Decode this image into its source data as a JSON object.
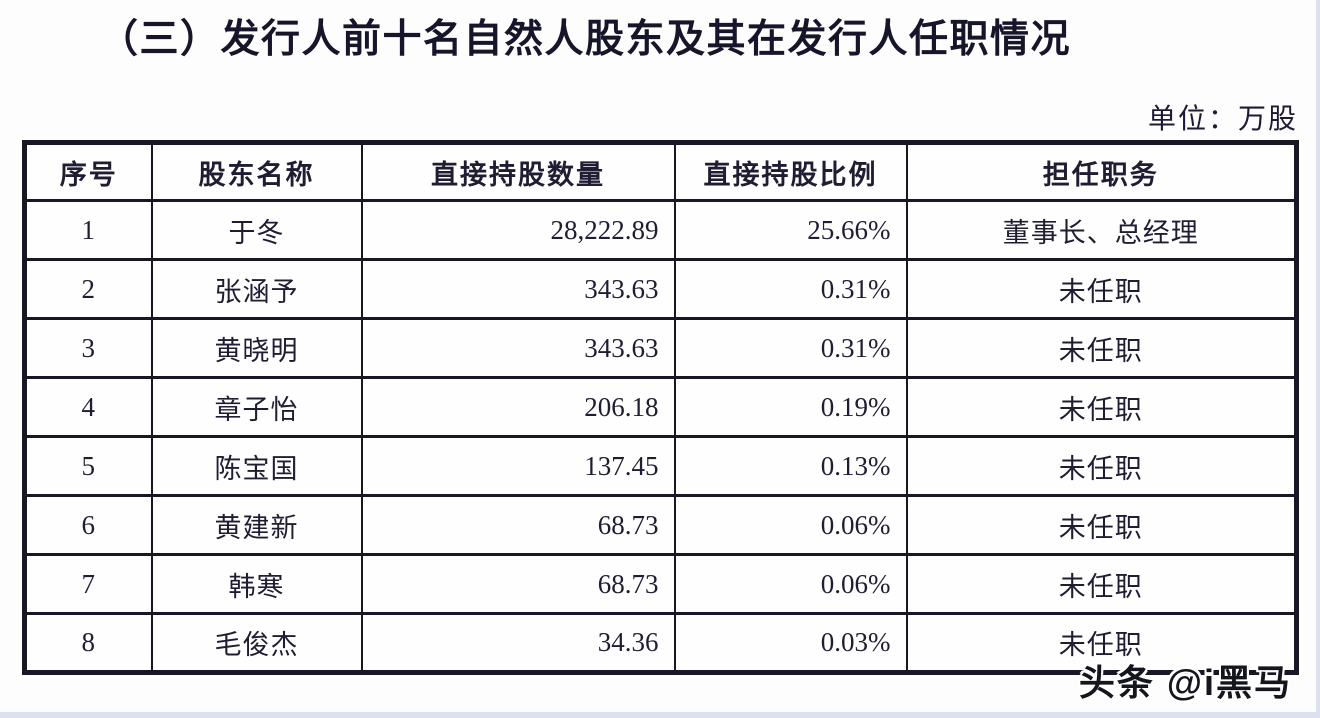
{
  "page": {
    "title": "（三）发行人前十名自然人股东及其在发行人任职情况",
    "unit_label": "单位：万股",
    "watermark": "头条 @i黑马"
  },
  "table": {
    "columns": [
      "序号",
      "股东名称",
      "直接持股数量",
      "直接持股比例",
      "担任职务"
    ],
    "rows": [
      [
        "1",
        "于冬",
        "28,222.89",
        "25.66%",
        "董事长、总经理"
      ],
      [
        "2",
        "张涵予",
        "343.63",
        "0.31%",
        "未任职"
      ],
      [
        "3",
        "黄晓明",
        "343.63",
        "0.31%",
        "未任职"
      ],
      [
        "4",
        "章子怡",
        "206.18",
        "0.19%",
        "未任职"
      ],
      [
        "5",
        "陈宝国",
        "137.45",
        "0.13%",
        "未任职"
      ],
      [
        "6",
        "黄建新",
        "68.73",
        "0.06%",
        "未任职"
      ],
      [
        "7",
        "韩寒",
        "68.73",
        "0.06%",
        "未任职"
      ],
      [
        "8",
        "毛俊杰",
        "34.36",
        "0.03%",
        "未任职"
      ]
    ]
  },
  "colors": {
    "ink": "#201d33",
    "border": "#181824",
    "paper": "#fdfdfe",
    "page_edge": "#dde1ef",
    "watermark_fill": "#15151e",
    "watermark_outline": "#ffffff"
  }
}
